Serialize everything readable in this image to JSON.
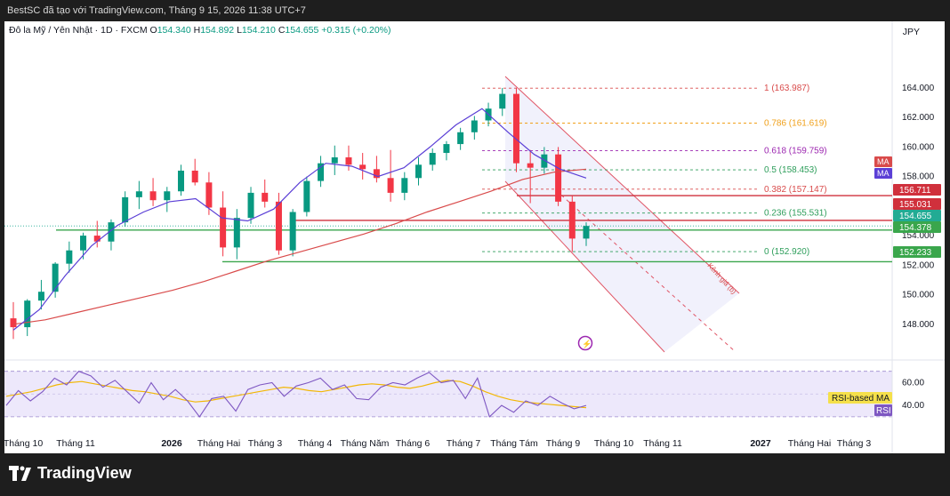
{
  "header": {
    "caption": "BestSC đã tạo với TradingView.com, Tháng 9 15, 2026 11:38 UTC+7"
  },
  "symbol": {
    "name": "Đô la Mỹ / Yên Nhật · 1D · FXCM",
    "open_label": "O",
    "open": "154.340",
    "high_label": "H",
    "high": "154.892",
    "low_label": "L",
    "low": "154.210",
    "close_label": "C",
    "close": "154.655",
    "change": "+0.315 (+0.20%)"
  },
  "currency": "JPY",
  "footer": {
    "logo_text": "TradingView"
  },
  "colors": {
    "up": "#089981",
    "down": "#f23645",
    "ma_fast": "#5b3fd6",
    "ma_slow": "#d94b4b",
    "rsi": "#7e57c2",
    "rsi_ma": "#f2b705",
    "fib_green": "#2e9e5b",
    "price_line": "#c0303c"
  },
  "chart_data": {
    "type": "candlestick",
    "price_axis": {
      "ylim": [
        146.0,
        165.2
      ],
      "ticks": [
        "148.000",
        "150.000",
        "152.000",
        "154.000",
        "156.000",
        "158.000",
        "160.000",
        "162.000",
        "164.000"
      ]
    },
    "time_axis": {
      "labels": [
        "Tháng 10",
        "Tháng 11",
        "2026",
        "Tháng Hai",
        "Tháng 3",
        "Tháng 4",
        "Tháng Năm",
        "Tháng 6",
        "Tháng 7",
        "Tháng Tám",
        "Tháng 9",
        "Tháng 10",
        "Tháng 11",
        "2027",
        "Tháng Hai",
        "Tháng 3"
      ],
      "bold": [
        "2026",
        "2027"
      ]
    },
    "ohlc_approx_weekly": [
      [
        148.4,
        149.5,
        147.0,
        147.8
      ],
      [
        147.8,
        149.7,
        147.2,
        149.6
      ],
      [
        149.6,
        151.0,
        149.0,
        150.2
      ],
      [
        150.2,
        152.2,
        149.8,
        152.1
      ],
      [
        152.1,
        153.6,
        151.5,
        153.0
      ],
      [
        153.0,
        154.2,
        152.4,
        154.0
      ],
      [
        154.0,
        155.0,
        153.2,
        153.6
      ],
      [
        153.6,
        155.1,
        153.0,
        154.9
      ],
      [
        154.9,
        157.0,
        154.6,
        156.6
      ],
      [
        156.6,
        157.7,
        155.8,
        157.0
      ],
      [
        157.0,
        157.9,
        156.0,
        156.4
      ],
      [
        156.4,
        157.3,
        155.6,
        157.0
      ],
      [
        157.0,
        158.8,
        156.7,
        158.4
      ],
      [
        158.4,
        159.2,
        157.4,
        157.6
      ],
      [
        157.6,
        158.3,
        155.4,
        155.9
      ],
      [
        155.9,
        157.0,
        152.6,
        153.2
      ],
      [
        153.2,
        155.8,
        152.4,
        155.2
      ],
      [
        155.2,
        157.3,
        154.8,
        156.9
      ],
      [
        156.9,
        157.8,
        155.9,
        156.3
      ],
      [
        156.3,
        156.9,
        152.7,
        153.0
      ],
      [
        153.0,
        155.8,
        152.6,
        155.6
      ],
      [
        155.6,
        158.0,
        155.3,
        157.7
      ],
      [
        157.7,
        159.4,
        157.3,
        158.9
      ],
      [
        158.9,
        160.1,
        158.1,
        159.3
      ],
      [
        159.3,
        160.1,
        158.4,
        158.8
      ],
      [
        158.8,
        159.6,
        157.8,
        158.5
      ],
      [
        158.5,
        159.4,
        157.6,
        157.9
      ],
      [
        157.9,
        159.8,
        156.3,
        156.9
      ],
      [
        156.9,
        158.3,
        156.4,
        157.9
      ],
      [
        157.9,
        159.3,
        157.4,
        158.8
      ],
      [
        158.8,
        159.9,
        158.4,
        159.6
      ],
      [
        159.6,
        160.4,
        159.1,
        160.2
      ],
      [
        160.2,
        161.3,
        159.8,
        161.0
      ],
      [
        161.0,
        162.1,
        160.5,
        161.8
      ],
      [
        161.8,
        163.0,
        161.4,
        162.6
      ],
      [
        162.6,
        164.0,
        162.1,
        163.6
      ],
      [
        163.6,
        164.0,
        158.3,
        158.9
      ],
      [
        158.9,
        159.8,
        156.2,
        158.6
      ],
      [
        158.6,
        160.0,
        158.2,
        159.5
      ],
      [
        159.5,
        160.0,
        156.0,
        156.3
      ],
      [
        156.3,
        156.7,
        152.9,
        153.8
      ],
      [
        153.8,
        154.9,
        153.3,
        154.655
      ]
    ],
    "moving_averages": [
      {
        "name": "MA",
        "color": "#d94b4b",
        "values_approx": [
          148.0,
          148.3,
          148.8,
          149.3,
          149.8,
          150.3,
          150.9,
          151.6,
          152.3,
          152.9,
          153.5,
          154.1,
          154.8,
          155.6,
          156.3,
          157.0,
          157.8,
          158.3,
          158.5
        ]
      },
      {
        "name": "MA",
        "color": "#5b3fd6",
        "values_approx": [
          147.6,
          149.0,
          151.3,
          153.3,
          154.7,
          155.6,
          156.3,
          156.5,
          155.2,
          155.0,
          155.8,
          157.6,
          158.9,
          158.7,
          158.0,
          158.6,
          160.0,
          161.5,
          162.6,
          161.0,
          159.5,
          158.5,
          157.9
        ]
      }
    ],
    "fibonacci": [
      {
        "level": "1",
        "price": 163.987,
        "label": "1 (163.987)",
        "color": "#d94b4b"
      },
      {
        "level": "0.786",
        "price": 161.619,
        "label": "0.786 (161.619)",
        "color": "#f0a01a"
      },
      {
        "level": "0.618",
        "price": 159.759,
        "label": "0.618 (159.759)",
        "color": "#9c27b0"
      },
      {
        "level": "0.5",
        "price": 158.453,
        "label": "0.5 (158.453)",
        "color": "#2e9e5b"
      },
      {
        "level": "0.382",
        "price": 157.147,
        "label": "0.382 (157.147)",
        "color": "#d94b4b"
      },
      {
        "level": "0.236",
        "price": 155.531,
        "label": "0.236 (155.531)",
        "color": "#2e9e5b"
      },
      {
        "level": "0",
        "price": 152.92,
        "label": "0 (152.920)",
        "color": "#2e9e5b"
      }
    ],
    "horizontal_lines": [
      {
        "price": 156.711,
        "label": "156.711",
        "color": "#d0303c"
      },
      {
        "price": 155.031,
        "label": "155.031",
        "color": "#d0303c"
      },
      {
        "price": 154.378,
        "label": "154.378",
        "color": "#3aa64c"
      },
      {
        "price": 152.233,
        "label": "152.233",
        "color": "#3aa64c"
      }
    ],
    "last_price": {
      "price": 154.655,
      "label": "154.655",
      "color": "#22ab94"
    },
    "channel": {
      "label": "Kênh giá (b)"
    },
    "ma_badges": [
      "MA",
      "MA"
    ],
    "rsi": {
      "ticks": [
        "60.00",
        "40.00"
      ],
      "ylim": [
        26,
        76
      ],
      "band": [
        30,
        70
      ],
      "values_approx": [
        40,
        53,
        44,
        52,
        64,
        58,
        70,
        66,
        56,
        62,
        52,
        42,
        60,
        45,
        54,
        44,
        30,
        46,
        48,
        35,
        54,
        58,
        60,
        48,
        57,
        60,
        64,
        54,
        58,
        46,
        45,
        56,
        60,
        58,
        64,
        69,
        60,
        62,
        46,
        64,
        30,
        40,
        34,
        44,
        40,
        48,
        42,
        37,
        40
      ],
      "ma_values_approx": [
        48,
        50,
        52,
        55,
        58,
        60,
        61,
        59,
        57,
        55,
        53,
        52,
        50,
        48,
        45,
        43,
        44,
        46,
        48,
        50,
        52,
        54,
        56,
        55,
        53,
        52,
        54,
        56,
        58,
        59,
        58,
        56,
        55,
        57,
        60,
        62,
        61,
        57,
        52,
        48,
        45,
        43,
        42,
        41,
        40,
        39,
        38
      ],
      "labels": [
        "RSI-based MA",
        "RSI"
      ]
    }
  }
}
